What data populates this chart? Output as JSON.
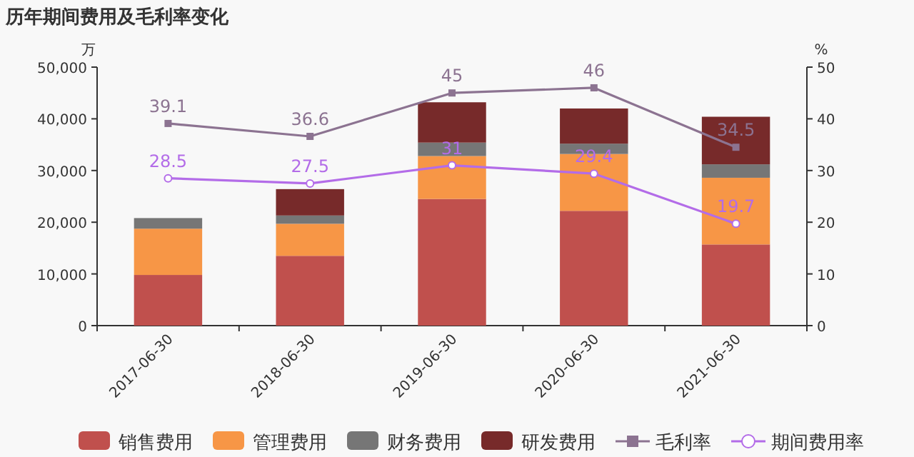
{
  "chart_data": {
    "type": "bar",
    "title": "历年期间费用及毛利率变化",
    "ylabel": "万",
    "y2label": "%",
    "categories": [
      "2017-06-30",
      "2018-06-30",
      "2019-06-30",
      "2020-06-30",
      "2021-06-30"
    ],
    "stacked": true,
    "legend": "bottom",
    "grid": false,
    "ylim": [
      0,
      50000
    ],
    "yticks": [
      {
        "value": 0,
        "label": "0"
      },
      {
        "value": 10000,
        "label": "10,000"
      },
      {
        "value": 20000,
        "label": "20,000"
      },
      {
        "value": 30000,
        "label": "30,000"
      },
      {
        "value": 40000,
        "label": "40,000"
      },
      {
        "value": 50000,
        "label": "50,000"
      }
    ],
    "y2lim": [
      0,
      50
    ],
    "y2ticks": [
      0,
      10,
      20,
      30,
      40,
      50
    ],
    "series": [
      {
        "name": "销售费用",
        "color": "#c0504d",
        "values": [
          9800,
          13500,
          24500,
          22200,
          15700
        ]
      },
      {
        "name": "管理费用",
        "color": "#f79646",
        "values": [
          8950,
          6200,
          8300,
          11000,
          12900
        ]
      },
      {
        "name": "财务费用",
        "color": "#767676",
        "values": [
          2050,
          1600,
          2600,
          2000,
          2600
        ]
      },
      {
        "name": "研发费用",
        "color": "#772a2a",
        "values": [
          0,
          5100,
          7800,
          6800,
          9200
        ]
      },
      {
        "name": "毛利率",
        "type": "line",
        "axis": "y2",
        "color": "#8c7391",
        "marker": "square",
        "values": [
          39.1,
          36.6,
          45,
          46,
          34.5
        ],
        "value_labels": [
          "39.1",
          "36.6",
          "45",
          "46",
          "34.5"
        ]
      },
      {
        "name": "期间费用率",
        "type": "line",
        "axis": "y2",
        "color": "#b36ce8",
        "marker": "circle",
        "values": [
          28.5,
          27.5,
          31,
          29.4,
          19.7
        ],
        "value_labels": [
          "28.5",
          "27.5",
          "31",
          "29.4",
          "19.7"
        ]
      }
    ]
  }
}
